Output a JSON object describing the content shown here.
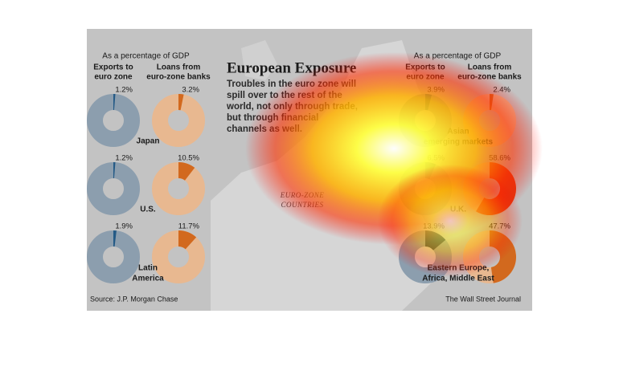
{
  "header": "As a percentage of GDP",
  "exports_header": [
    "Exports to",
    "euro zone"
  ],
  "loans_header": [
    "Loans from",
    "euro-zone banks"
  ],
  "title": "European Exposure",
  "body": [
    "Troubles in the euro zone will",
    "spill over to the rest of the",
    "world, not only through trade,",
    "but through financial",
    "channels as well."
  ],
  "map_label": [
    "EURO-ZONE",
    "COUNTRIES"
  ],
  "source": "Source: J.P. Morgan Chase",
  "credit": "The Wall Street Journal",
  "regions": [
    {
      "name": [
        "Japan"
      ],
      "exports": 1.2,
      "exports_label": "1.2%",
      "loans": 3.2,
      "loans_label": "3.2%"
    },
    {
      "name": [
        "U.S."
      ],
      "exports": 1.2,
      "exports_label": "1.2%",
      "loans": 10.5,
      "loans_label": "10.5%"
    },
    {
      "name": [
        "Latin",
        "America"
      ],
      "exports": 1.9,
      "exports_label": "1.9%",
      "loans": 11.7,
      "loans_label": "11.7%"
    },
    {
      "name": [
        "Asian",
        "emerging markets"
      ],
      "exports": 3.9,
      "exports_label": "3.9%",
      "loans": 2.4,
      "loans_label": "2.4%"
    },
    {
      "name": [
        "U.K."
      ],
      "exports": 6.5,
      "exports_label": "6.5%",
      "loans": 58.6,
      "loans_label": "58.6%"
    },
    {
      "name": [
        "Eastern Europe,",
        "Africa, Middle East"
      ],
      "exports": 13.9,
      "exports_label": "13.9%",
      "loans": 47.7,
      "loans_label": "47.7%"
    }
  ]
}
